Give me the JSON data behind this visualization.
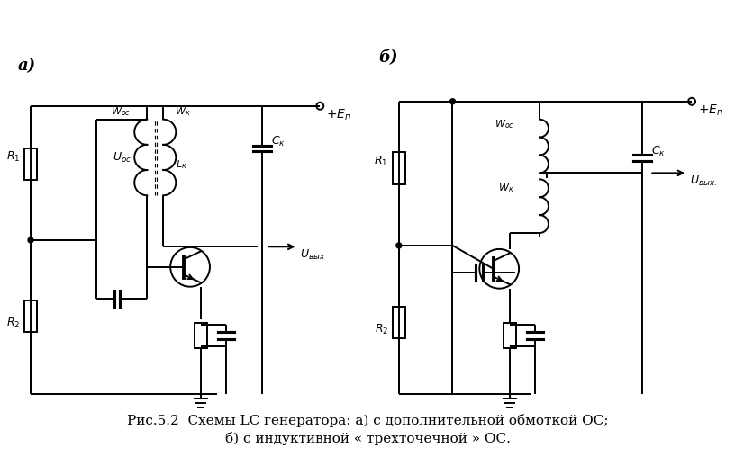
{
  "caption_line1": "Рис.5.2  Схемы LC генератора: а) с дополнительной обмоткой ОС;",
  "caption_line2": "б) с индуктивной « трехточечной » ОС.",
  "caption_fontsize": 11,
  "label_a": "а)",
  "label_b": "б)",
  "bg_color": "#ffffff",
  "lw": 1.4
}
